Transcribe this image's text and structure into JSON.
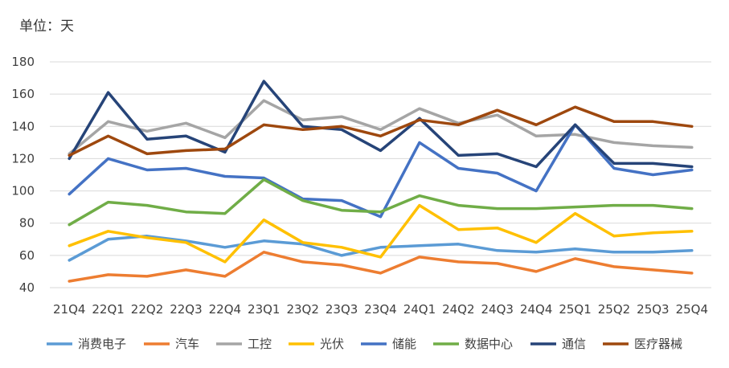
{
  "unit_label": "单位：天",
  "chart_data": {
    "type": "line",
    "categories": [
      "21Q4",
      "22Q1",
      "22Q2",
      "22Q3",
      "22Q4",
      "23Q1",
      "23Q2",
      "23Q3",
      "23Q4",
      "24Q1",
      "24Q2",
      "24Q3",
      "24Q4",
      "25Q1",
      "25Q2",
      "25Q3",
      "25Q4"
    ],
    "ylim": [
      40,
      180
    ],
    "yticks": [
      40,
      60,
      80,
      100,
      120,
      140,
      160,
      180
    ],
    "grid": true,
    "legend_position": "bottom",
    "series": [
      {
        "name": "消费电子",
        "color": "#5b9bd5",
        "values": [
          57,
          70,
          72,
          69,
          65,
          69,
          67,
          60,
          65,
          66,
          67,
          63,
          62,
          64,
          62,
          62,
          63
        ]
      },
      {
        "name": "汽车",
        "color": "#ed7d31",
        "values": [
          44,
          48,
          47,
          51,
          47,
          62,
          56,
          54,
          49,
          59,
          56,
          55,
          50,
          58,
          53,
          51,
          49
        ]
      },
      {
        "name": "工控",
        "color": "#a5a5a5",
        "values": [
          123,
          143,
          137,
          142,
          133,
          156,
          144,
          146,
          138,
          151,
          142,
          147,
          134,
          135,
          130,
          128,
          127
        ]
      },
      {
        "name": "光伏",
        "color": "#ffc000",
        "values": [
          66,
          75,
          71,
          68,
          56,
          82,
          68,
          65,
          59,
          91,
          76,
          77,
          68,
          86,
          72,
          74,
          75
        ]
      },
      {
        "name": "储能",
        "color": "#4472c4",
        "values": [
          98,
          120,
          113,
          114,
          109,
          108,
          95,
          94,
          84,
          130,
          114,
          111,
          100,
          141,
          114,
          110,
          113
        ]
      },
      {
        "name": "数据中心",
        "color": "#70ad47",
        "values": [
          79,
          93,
          91,
          87,
          86,
          107,
          94,
          88,
          87,
          97,
          91,
          89,
          89,
          90,
          91,
          91,
          89
        ]
      },
      {
        "name": "通信",
        "color": "#264478",
        "values": [
          120,
          161,
          132,
          134,
          124,
          168,
          140,
          138,
          125,
          145,
          122,
          123,
          115,
          141,
          117,
          117,
          115
        ]
      },
      {
        "name": "医疗器械",
        "color": "#9e480e",
        "values": [
          122,
          134,
          123,
          125,
          126,
          141,
          138,
          140,
          134,
          144,
          141,
          150,
          141,
          152,
          143,
          143,
          140
        ]
      }
    ]
  }
}
